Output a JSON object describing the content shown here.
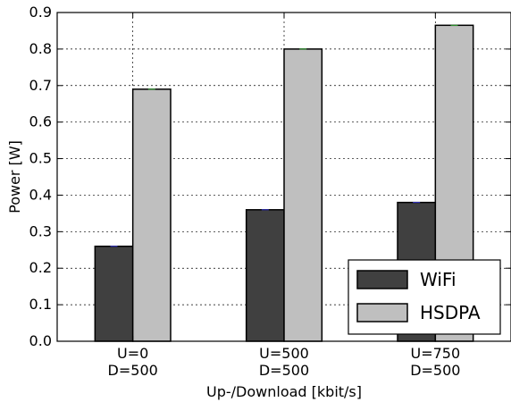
{
  "chart_data": {
    "type": "bar",
    "categories": [
      [
        "U=0",
        "D=500"
      ],
      [
        "U=500",
        "D=500"
      ],
      [
        "U=750",
        "D=500"
      ]
    ],
    "series": [
      {
        "name": "WiFi",
        "values": [
          0.26,
          0.36,
          0.38
        ],
        "color": "#404040"
      },
      {
        "name": "HSDPA",
        "values": [
          0.69,
          0.8,
          0.865
        ],
        "color": "#bfbfbf"
      }
    ],
    "xlabel": "Up-/Download [kbit/s]",
    "ylabel": "Power [W]",
    "ylim": [
      0,
      0.9
    ],
    "yticks": [
      "0.0",
      "0.1",
      "0.2",
      "0.3",
      "0.4",
      "0.5",
      "0.6",
      "0.7",
      "0.8",
      "0.9"
    ],
    "grid": true,
    "legend_position": "bottom-right"
  }
}
